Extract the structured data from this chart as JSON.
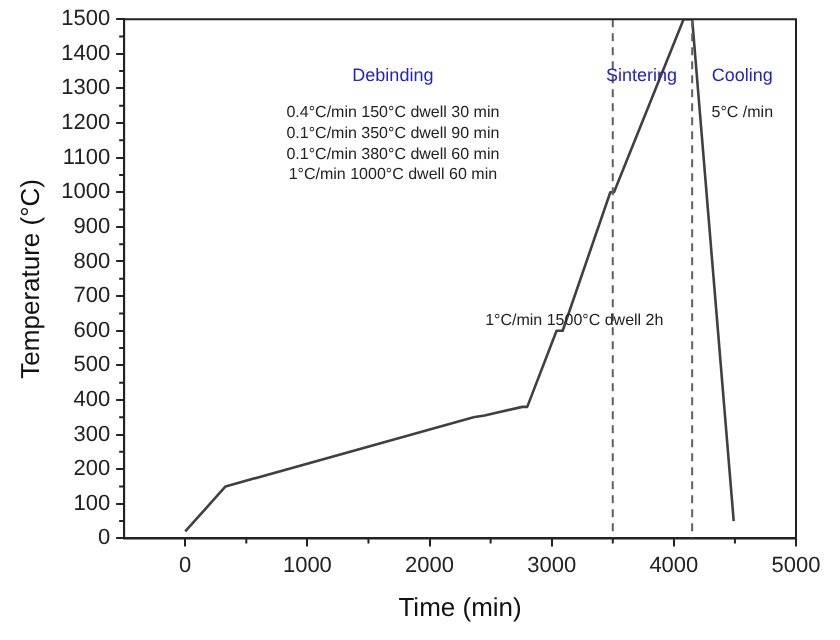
{
  "chart_data": {
    "type": "line",
    "xlabel": "Time (min)",
    "ylabel": "Temperature (°C)",
    "xlim": [
      -500,
      5000
    ],
    "xticks": [
      0,
      1000,
      2000,
      3000,
      4000,
      5000
    ],
    "ylim": [
      0,
      1500
    ],
    "yticks": [
      0,
      100,
      200,
      300,
      400,
      500,
      600,
      700,
      800,
      900,
      1000,
      1100,
      1200,
      1300,
      1400,
      1500
    ],
    "grid": false,
    "legend": false,
    "marker": "none",
    "line_style": "solid",
    "series": [
      {
        "color": "#404040",
        "x": [
          0,
          330,
          2360,
          2450,
          2760,
          2800,
          3040,
          3090,
          3480,
          3510,
          4080,
          4150,
          4490
        ],
        "values": [
          20,
          150,
          350,
          355,
          380,
          380,
          600,
          600,
          1000,
          1000,
          1500,
          1500,
          50
        ]
      }
    ],
    "ref_lines": [
      {
        "axis": "x",
        "value": 3500,
        "label": null,
        "line_style": "dashed",
        "color": "#606060"
      },
      {
        "axis": "x",
        "value": 4150,
        "label": null,
        "line_style": "dashed",
        "color": "#606060"
      }
    ],
    "annotations": [
      "Debinding",
      "Sintering",
      "Cooling",
      "0.4°C/min 150°C dwell 30 min",
      "0.1°C/min 350°C dwell 90 min",
      "0.1°C/min 380°C dwell 60 min",
      "1°C/min 1000°C dwell 60 min",
      "5°C /min",
      "1°C/min 1500°C dwell 2h"
    ]
  }
}
